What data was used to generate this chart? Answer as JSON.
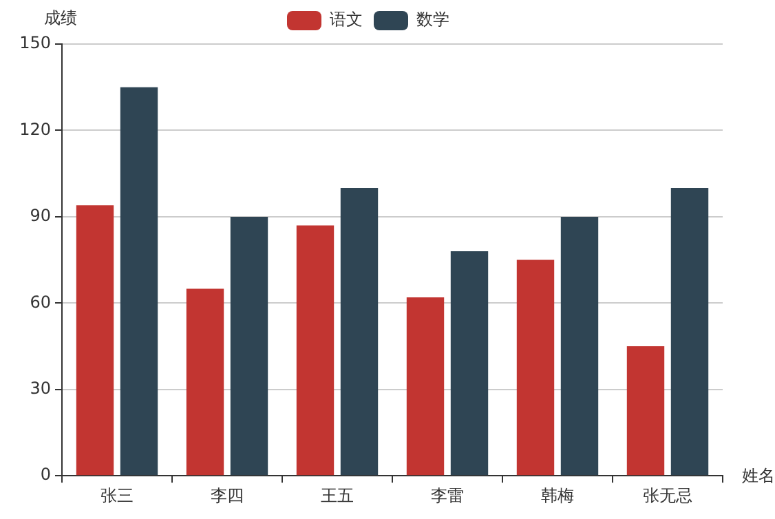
{
  "chart_data": {
    "type": "bar",
    "xlabel": "姓名",
    "ylabel": "成绩",
    "categories": [
      "张三",
      "李四",
      "王五",
      "李雷",
      "韩梅",
      "张无忌"
    ],
    "series": [
      {
        "name": "语文",
        "color": "#c23531",
        "values": [
          94,
          65,
          87,
          62,
          75,
          45
        ]
      },
      {
        "name": "数学",
        "color": "#2f4554",
        "values": [
          135,
          90,
          100,
          78,
          90,
          100
        ]
      }
    ],
    "ylim": [
      0,
      150
    ],
    "yticks": [
      0,
      30,
      60,
      90,
      120,
      150
    ],
    "grid": "y",
    "legend": "top"
  }
}
